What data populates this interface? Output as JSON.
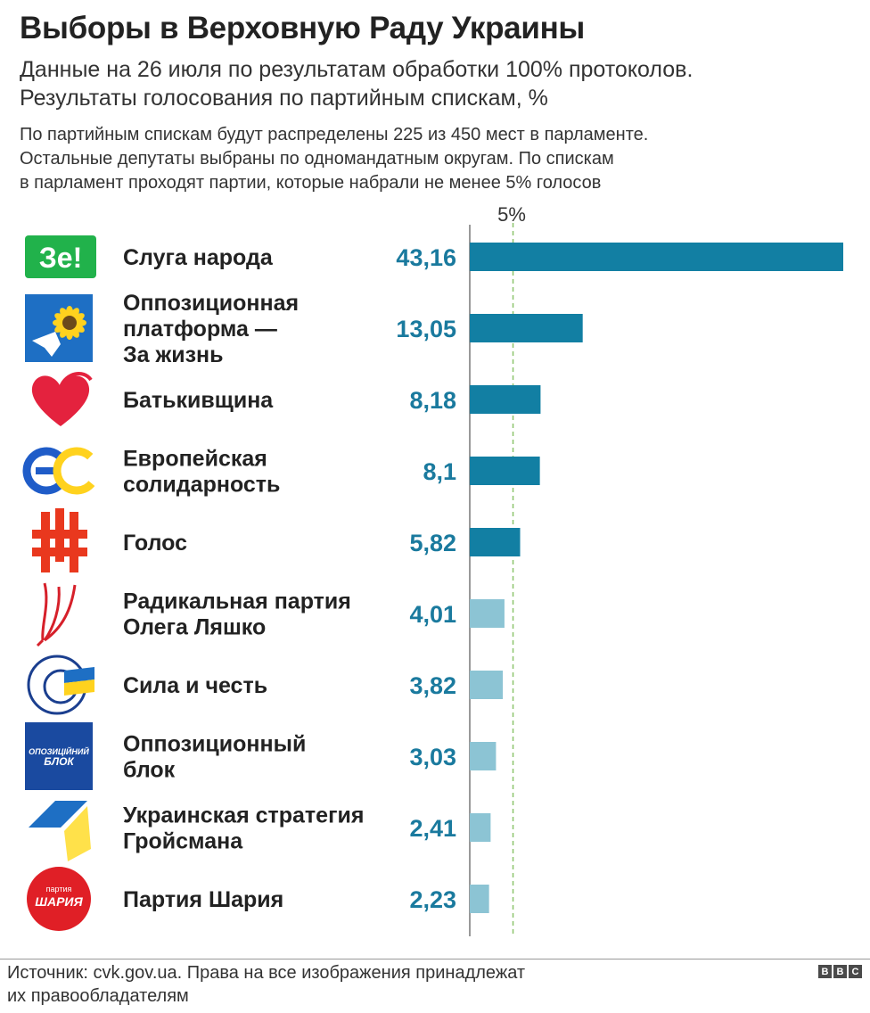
{
  "header": {
    "title": "Выборы в Верховную Раду Украины",
    "subtitle_line1": "Данные на 26 июля по результатам обработки 100% протоколов.",
    "subtitle_line2": "Результаты голосования по партийным спискам, %",
    "note_line1": "По партийным спискам будут распределены 225 из 450 мест в парламенте.",
    "note_line2": "Остальные депутаты выбраны по одномандатным округам. По спискам",
    "note_line3": "в парламент проходят партии, которые набрали не менее 5% голосов"
  },
  "chart_data": {
    "type": "bar",
    "orientation": "horizontal",
    "categories": [
      [
        "Слуга народа"
      ],
      [
        "Оппозиционная",
        "платформа —",
        "За жизнь"
      ],
      [
        "Батькивщина"
      ],
      [
        "Европейская",
        "солидарность"
      ],
      [
        "Голос"
      ],
      [
        "Радикальная партия",
        "Олега Ляшко"
      ],
      [
        "Сила и честь"
      ],
      [
        "Оппозиционный",
        "блок"
      ],
      [
        "Украинская стратегия",
        "Гройсмана"
      ],
      [
        "Партия Шария"
      ]
    ],
    "values": [
      43.16,
      13.05,
      8.18,
      8.1,
      5.82,
      4.01,
      3.82,
      3.03,
      2.41,
      2.23
    ],
    "value_labels": [
      "43,16",
      "13,05",
      "8,18",
      "8,1",
      "5,82",
      "4,01",
      "3,82",
      "3,03",
      "2,41",
      "2,23"
    ],
    "logos": [
      "ze-logo",
      "sunflower-dove-logo",
      "heart-logo",
      "es-logo",
      "holos-logo",
      "pitchfork-logo",
      "sila-i-chest-logo",
      "opposition-bloc-logo",
      "ukrainian-strategy-logo",
      "shariy-logo"
    ],
    "threshold": {
      "value": 5,
      "label": "5%"
    },
    "xlim": [
      0,
      43.16
    ],
    "colors": {
      "above_threshold": "#127fa3",
      "below_threshold": "#8cc4d4",
      "value_text": "#1a7a9e",
      "threshold_line": "#8cc46b"
    }
  },
  "logo_text": {
    "ze": "Зе!",
    "opp_bloc_1": "ОПОЗИЦІЙНИЙ",
    "opp_bloc_2": "БЛОК",
    "shariy_small": "партия",
    "shariy_big": "ШАРИЯ"
  },
  "footer": {
    "source_line1": "Источник: cvk.gov.ua. Права на все изображения принадлежат",
    "source_line2": "их правообладателям",
    "brand_letters": [
      "B",
      "B",
      "C"
    ]
  }
}
